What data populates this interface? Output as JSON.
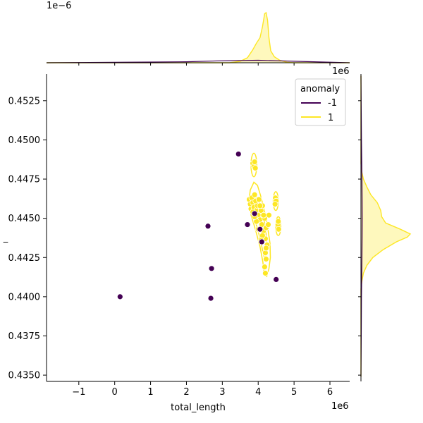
{
  "chart_data": {
    "type": "scatter",
    "subtype": "jointplot",
    "title": "",
    "xlabel": "total_length",
    "ylabel": "_",
    "x_offset_text": "1e6",
    "top_offset_text": "1e−6",
    "right_offset_text": "1e6",
    "xlim": [
      -1.9,
      6.55
    ],
    "ylim": [
      0.4346,
      0.4542
    ],
    "x_ticks": [
      -1,
      0,
      1,
      2,
      3,
      4,
      5,
      6
    ],
    "x_tick_labels": [
      "−1",
      "0",
      "1",
      "2",
      "3",
      "4",
      "5",
      "6"
    ],
    "y_ticks": [
      0.435,
      0.4375,
      0.44,
      0.4425,
      0.445,
      0.4475,
      0.45,
      0.4525
    ],
    "y_tick_labels": [
      "0.4350",
      "0.4375",
      "0.4400",
      "0.4425",
      "0.4450",
      "0.4475",
      "0.4500",
      "0.4525"
    ],
    "grid": false,
    "legend": {
      "title": "anomaly",
      "placement": "top-right",
      "entries": [
        {
          "label": "-1",
          "color": "#440154"
        },
        {
          "label": "1",
          "color": "#fde725"
        }
      ]
    },
    "series": [
      {
        "name": "-1",
        "color": "#440154",
        "points": [
          [
            0.15,
            0.44
          ],
          [
            2.6,
            0.4445
          ],
          [
            2.7,
            0.4418
          ],
          [
            2.68,
            0.4399
          ],
          [
            3.45,
            0.4491
          ],
          [
            3.7,
            0.4446
          ],
          [
            3.9,
            0.4453
          ],
          [
            4.05,
            0.4443
          ],
          [
            4.1,
            0.4435
          ],
          [
            4.5,
            0.4411
          ]
        ]
      },
      {
        "name": "1",
        "color": "#fde725",
        "points": [
          [
            3.85,
            0.4485
          ],
          [
            3.88,
            0.4483
          ],
          [
            3.9,
            0.4486
          ],
          [
            3.92,
            0.4482
          ],
          [
            3.75,
            0.4462
          ],
          [
            3.78,
            0.4459
          ],
          [
            3.8,
            0.4456
          ],
          [
            3.82,
            0.4463
          ],
          [
            3.85,
            0.446
          ],
          [
            3.88,
            0.4457
          ],
          [
            3.9,
            0.4465
          ],
          [
            3.93,
            0.4461
          ],
          [
            3.95,
            0.4455
          ],
          [
            3.98,
            0.4458
          ],
          [
            4.0,
            0.4452
          ],
          [
            4.02,
            0.4462
          ],
          [
            4.05,
            0.4449
          ],
          [
            4.08,
            0.4455
          ],
          [
            4.1,
            0.4446
          ],
          [
            4.12,
            0.4458
          ],
          [
            4.15,
            0.4442
          ],
          [
            4.18,
            0.445
          ],
          [
            4.2,
            0.4437
          ],
          [
            4.22,
            0.4444
          ],
          [
            4.25,
            0.4433
          ],
          [
            4.2,
            0.4428
          ],
          [
            4.22,
            0.4424
          ],
          [
            4.18,
            0.4419
          ],
          [
            4.2,
            0.4415
          ],
          [
            4.22,
            0.4431
          ],
          [
            4.28,
            0.4446
          ],
          [
            4.3,
            0.4452
          ],
          [
            3.95,
            0.4448
          ],
          [
            3.9,
            0.4451
          ],
          [
            4.05,
            0.4458
          ],
          [
            4.0,
            0.4443
          ],
          [
            4.12,
            0.4439
          ],
          [
            4.15,
            0.4452
          ],
          [
            3.85,
            0.4454
          ],
          [
            4.08,
            0.4436
          ],
          [
            4.48,
            0.4463
          ],
          [
            4.5,
            0.4461
          ],
          [
            4.47,
            0.4459
          ],
          [
            4.55,
            0.4446
          ],
          [
            4.57,
            0.4443
          ],
          [
            4.56,
            0.4448
          ]
        ]
      }
    ],
    "kde_contours": {
      "series": "1",
      "color": "#fde725",
      "outer": [
        [
          3.88,
          0.4473
        ],
        [
          3.98,
          0.4471
        ],
        [
          4.06,
          0.4465
        ],
        [
          4.14,
          0.4458
        ],
        [
          4.24,
          0.4448
        ],
        [
          4.33,
          0.4434
        ],
        [
          4.34,
          0.4425
        ],
        [
          4.3,
          0.4418
        ],
        [
          4.24,
          0.4413
        ],
        [
          4.17,
          0.4414
        ],
        [
          4.13,
          0.4422
        ],
        [
          4.05,
          0.4432
        ],
        [
          3.92,
          0.4443
        ],
        [
          3.8,
          0.4452
        ],
        [
          3.74,
          0.4461
        ],
        [
          3.78,
          0.4468
        ]
      ],
      "inner": [
        [
          3.95,
          0.4464
        ],
        [
          4.05,
          0.4459
        ],
        [
          4.15,
          0.4451
        ],
        [
          4.22,
          0.4441
        ],
        [
          4.24,
          0.4429
        ],
        [
          4.19,
          0.4423
        ],
        [
          4.12,
          0.443
        ],
        [
          4.03,
          0.4439
        ],
        [
          3.92,
          0.4448
        ],
        [
          3.86,
          0.4457
        ],
        [
          3.88,
          0.4463
        ]
      ],
      "islands": [
        {
          "center": [
            3.88,
            0.4484
          ],
          "rx": 0.08,
          "ry": 0.00075
        },
        {
          "center": [
            4.49,
            0.4461
          ],
          "rx": 0.07,
          "ry": 0.0006
        },
        {
          "center": [
            4.56,
            0.4445
          ],
          "rx": 0.07,
          "ry": 0.0006
        }
      ]
    },
    "top_marginal": {
      "series": "1",
      "density_scale_label": "1e−6",
      "peak_x": 4.2,
      "curve": [
        [
          -1.9,
          0
        ],
        [
          3.2,
          0.0
        ],
        [
          3.5,
          0.03
        ],
        [
          3.7,
          0.1
        ],
        [
          3.85,
          0.26
        ],
        [
          3.95,
          0.39
        ],
        [
          4.05,
          0.5
        ],
        [
          4.12,
          0.72
        ],
        [
          4.18,
          0.98
        ],
        [
          4.22,
          1.0
        ],
        [
          4.26,
          0.85
        ],
        [
          4.3,
          0.5
        ],
        [
          4.35,
          0.24
        ],
        [
          4.45,
          0.12
        ],
        [
          4.6,
          0.05
        ],
        [
          4.8,
          0.01
        ],
        [
          5.0,
          0.0
        ],
        [
          6.55,
          0
        ]
      ],
      "outlier_curve": [
        [
          -1.9,
          0
        ],
        [
          0.0,
          0.01
        ],
        [
          2.0,
          0.02
        ],
        [
          3.0,
          0.04
        ],
        [
          4.0,
          0.05
        ],
        [
          5.0,
          0.03
        ],
        [
          6.55,
          0
        ]
      ]
    },
    "right_marginal": {
      "series": "1",
      "peak_y": 0.4439,
      "curve": [
        [
          0.4349,
          0
        ],
        [
          0.4405,
          0.0
        ],
        [
          0.441,
          0.02
        ],
        [
          0.4415,
          0.05
        ],
        [
          0.442,
          0.12
        ],
        [
          0.4425,
          0.24
        ],
        [
          0.443,
          0.45
        ],
        [
          0.4435,
          0.72
        ],
        [
          0.4438,
          0.94
        ],
        [
          0.444,
          1.0
        ],
        [
          0.4443,
          0.8
        ],
        [
          0.4447,
          0.5
        ],
        [
          0.4451,
          0.42
        ],
        [
          0.4455,
          0.4
        ],
        [
          0.446,
          0.33
        ],
        [
          0.4465,
          0.2
        ],
        [
          0.447,
          0.12
        ],
        [
          0.4475,
          0.05
        ],
        [
          0.448,
          0.015
        ],
        [
          0.4485,
          0.0
        ],
        [
          0.4541,
          0
        ]
      ],
      "outlier_curve": [
        [
          0.4349,
          0
        ],
        [
          0.4375,
          0.005
        ],
        [
          0.44,
          0.01
        ],
        [
          0.4425,
          0.02
        ],
        [
          0.445,
          0.025
        ],
        [
          0.4475,
          0.02
        ],
        [
          0.45,
          0.01
        ],
        [
          0.4541,
          0
        ]
      ]
    }
  }
}
